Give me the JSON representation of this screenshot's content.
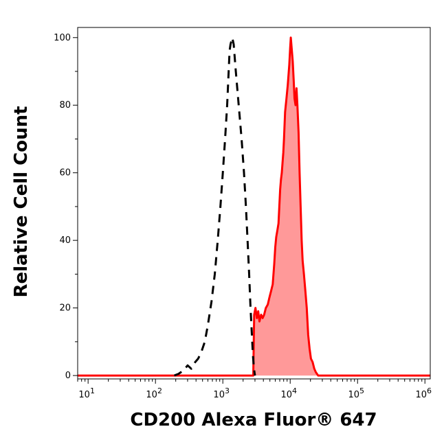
{
  "chart_data": {
    "type": "area",
    "title": "",
    "xlabel": "CD200 Alexa Fluor® 647",
    "ylabel": "Relative Cell Count",
    "x_scale": "log",
    "xlim": [
      7,
      1200000
    ],
    "ylim": [
      -1,
      103
    ],
    "x_ticks": [
      {
        "value": 10,
        "base": "10",
        "exp": "1"
      },
      {
        "value": 100,
        "base": "10",
        "exp": "2"
      },
      {
        "value": 1000,
        "base": "10",
        "exp": "3"
      },
      {
        "value": 10000,
        "base": "10",
        "exp": "4"
      },
      {
        "value": 100000,
        "base": "10",
        "exp": "5"
      },
      {
        "value": 1000000,
        "base": "10",
        "exp": "6"
      }
    ],
    "y_ticks": [
      {
        "value": 0,
        "label": "0"
      },
      {
        "value": 20,
        "label": "20"
      },
      {
        "value": 40,
        "label": "40"
      },
      {
        "value": 60,
        "label": "60"
      },
      {
        "value": 80,
        "label": "80"
      },
      {
        "value": 100,
        "label": "100"
      }
    ],
    "grid": false,
    "legend": "none",
    "series": [
      {
        "style": "dashed",
        "color": "#000000",
        "fill": "none",
        "points": [
          [
            190,
            0
          ],
          [
            220,
            0.5
          ],
          [
            260,
            1.5
          ],
          [
            300,
            3
          ],
          [
            340,
            2
          ],
          [
            390,
            4
          ],
          [
            430,
            5
          ],
          [
            480,
            7
          ],
          [
            540,
            10
          ],
          [
            600,
            15
          ],
          [
            680,
            22
          ],
          [
            760,
            30
          ],
          [
            840,
            40
          ],
          [
            920,
            50
          ],
          [
            1000,
            60
          ],
          [
            1080,
            70
          ],
          [
            1160,
            80
          ],
          [
            1220,
            90
          ],
          [
            1260,
            96
          ],
          [
            1300,
            98
          ],
          [
            1380,
            100
          ],
          [
            1450,
            98
          ],
          [
            1560,
            90
          ],
          [
            1720,
            80
          ],
          [
            1900,
            70
          ],
          [
            2060,
            60
          ],
          [
            2200,
            50
          ],
          [
            2330,
            40
          ],
          [
            2460,
            30
          ],
          [
            2580,
            20
          ],
          [
            2700,
            12
          ],
          [
            2800,
            6
          ],
          [
            2900,
            2
          ],
          [
            3000,
            0
          ]
        ]
      },
      {
        "style": "solid",
        "color": "#ff0000",
        "fill": "#ff9999",
        "points": [
          [
            7,
            0
          ],
          [
            2500,
            0
          ],
          [
            2830,
            0
          ],
          [
            2920,
            18
          ],
          [
            3050,
            20
          ],
          [
            3200,
            17
          ],
          [
            3350,
            19
          ],
          [
            3500,
            16
          ],
          [
            3700,
            18
          ],
          [
            3900,
            17
          ],
          [
            4100,
            18
          ],
          [
            4350,
            20
          ],
          [
            4650,
            21
          ],
          [
            4900,
            23
          ],
          [
            5200,
            25
          ],
          [
            5500,
            27
          ],
          [
            5800,
            33
          ],
          [
            6000,
            38
          ],
          [
            6200,
            41
          ],
          [
            6450,
            43
          ],
          [
            6700,
            45
          ],
          [
            6900,
            50
          ],
          [
            7100,
            55
          ],
          [
            7300,
            58
          ],
          [
            7500,
            60
          ],
          [
            7700,
            63
          ],
          [
            7900,
            66
          ],
          [
            8100,
            70
          ],
          [
            8400,
            78
          ],
          [
            8800,
            82
          ],
          [
            9200,
            86
          ],
          [
            9700,
            92
          ],
          [
            10000,
            97
          ],
          [
            10200,
            100
          ],
          [
            10500,
            97
          ],
          [
            10900,
            93
          ],
          [
            11300,
            87
          ],
          [
            11600,
            82
          ],
          [
            12000,
            80
          ],
          [
            12400,
            85
          ],
          [
            12800,
            80
          ],
          [
            13300,
            72
          ],
          [
            13800,
            60
          ],
          [
            14300,
            50
          ],
          [
            14800,
            40
          ],
          [
            15300,
            34
          ],
          [
            16000,
            30
          ],
          [
            16800,
            25
          ],
          [
            17600,
            20
          ],
          [
            18500,
            12
          ],
          [
            19400,
            8
          ],
          [
            20300,
            5
          ],
          [
            21500,
            4
          ],
          [
            22800,
            2
          ],
          [
            24000,
            1
          ],
          [
            26000,
            0
          ],
          [
            1200000,
            0
          ]
        ]
      }
    ]
  }
}
